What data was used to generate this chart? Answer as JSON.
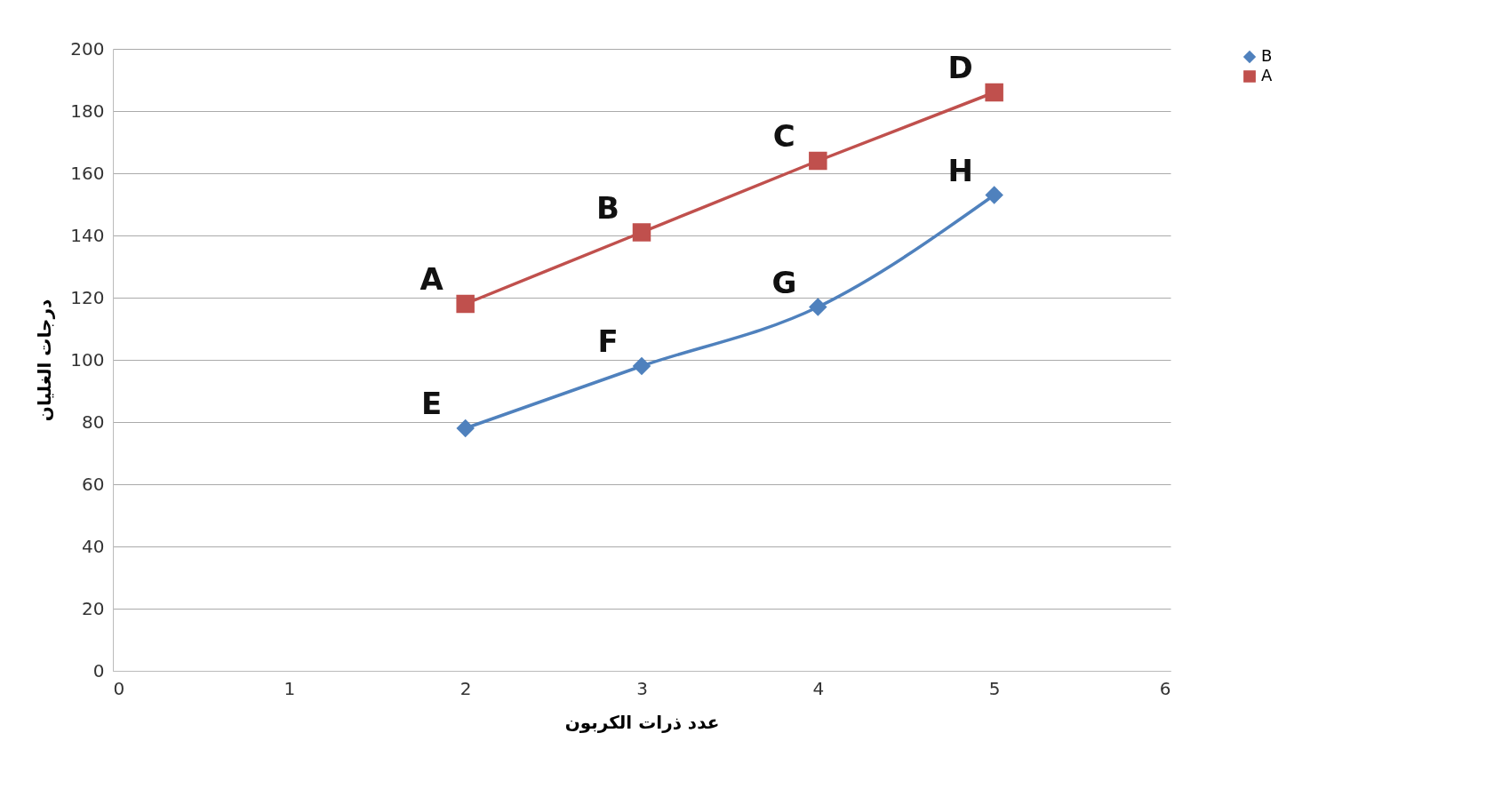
{
  "chart_data": {
    "type": "line",
    "xlabel": "عدد ذرات الكربون",
    "ylabel": "درجات الغليان",
    "x": [
      2,
      3,
      4,
      5
    ],
    "series": [
      {
        "name": "B",
        "color": "#4f81bd",
        "marker": "diamond",
        "values": [
          78,
          98,
          117,
          153
        ]
      },
      {
        "name": "A",
        "color": "#c0504d",
        "marker": "square",
        "values": [
          118,
          141,
          164,
          186
        ]
      }
    ],
    "annotations": [
      {
        "text": "A",
        "x": 2,
        "y": 118
      },
      {
        "text": "B",
        "x": 3,
        "y": 141
      },
      {
        "text": "C",
        "x": 4,
        "y": 164
      },
      {
        "text": "D",
        "x": 5,
        "y": 186
      },
      {
        "text": "E",
        "x": 2,
        "y": 78
      },
      {
        "text": "F",
        "x": 3,
        "y": 98
      },
      {
        "text": "G",
        "x": 4,
        "y": 117
      },
      {
        "text": "H",
        "x": 5,
        "y": 153
      }
    ],
    "xlim": [
      0,
      6
    ],
    "xticks": [
      0,
      1,
      2,
      3,
      4,
      5,
      6
    ],
    "ylim": [
      0,
      200
    ],
    "yticks": [
      0,
      20,
      40,
      60,
      80,
      100,
      120,
      140,
      160,
      180,
      200
    ],
    "grid": "y",
    "legend": "right",
    "line_style": "solid"
  }
}
